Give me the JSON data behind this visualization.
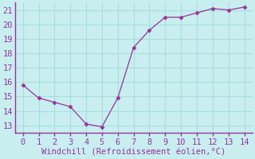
{
  "x": [
    0,
    1,
    2,
    3,
    4,
    5,
    6,
    7,
    8,
    9,
    10,
    11,
    12,
    13,
    14
  ],
  "y": [
    15.8,
    14.9,
    14.6,
    14.3,
    13.1,
    12.9,
    14.9,
    18.4,
    19.6,
    20.5,
    20.5,
    20.8,
    21.1,
    21.0,
    21.2
  ],
  "line_color": "#993399",
  "marker": "D",
  "marker_size": 2.5,
  "bg_color": "#c8eef0",
  "grid_color": "#aadddd",
  "axis_color": "#993399",
  "xlabel": "Windchill (Refroidissement éolien,°C)",
  "xlabel_color": "#993399",
  "tick_color": "#993399",
  "xlim": [
    -0.5,
    14.5
  ],
  "ylim": [
    12.5,
    21.5
  ],
  "yticks": [
    13,
    14,
    15,
    16,
    17,
    18,
    19,
    20,
    21
  ],
  "xticks": [
    0,
    1,
    2,
    3,
    4,
    5,
    6,
    7,
    8,
    9,
    10,
    11,
    12,
    13,
    14
  ],
  "tick_fontsize": 7.5,
  "label_fontsize": 7.5
}
